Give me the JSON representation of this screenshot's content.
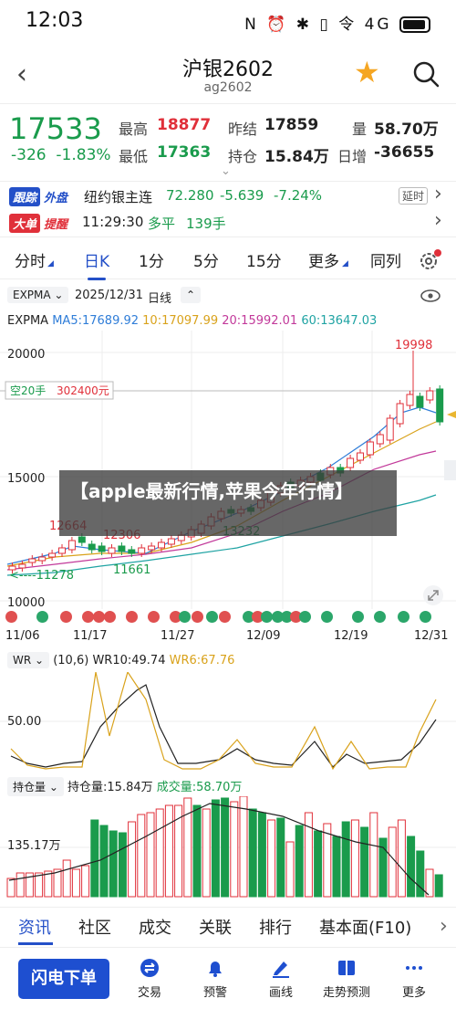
{
  "status": {
    "time": "12:03",
    "icons": "N ⏰ ✱ ▯ 令 4G"
  },
  "header": {
    "title": "沪银2602",
    "subtitle": "ag2602"
  },
  "quote": {
    "price": "17533",
    "change": "-326",
    "change_pct": "-1.83%",
    "high_label": "最高",
    "high": "18877",
    "low_label": "最低",
    "low": "17363",
    "prev_settle_label": "昨结",
    "prev_settle": "17859",
    "open_interest_label": "持仓",
    "open_interest": "15.84万",
    "volume_label": "量",
    "volume": "58.70万",
    "daily_add_label": "日增",
    "daily_add": "-36655"
  },
  "follow_row": {
    "badge1": "跟踪",
    "badge2": "外盘",
    "name": "纽约银主连",
    "value": "72.280",
    "change": "-5.639",
    "change_pct": "-7.24%",
    "tag": "延时"
  },
  "bigorder_row": {
    "badge1": "大单",
    "badge2": "提醒",
    "time": "11:29:30",
    "type": "多平",
    "qty": "139手"
  },
  "tabs": [
    "分时",
    "日K",
    "1分",
    "5分",
    "15分",
    "更多",
    "同列"
  ],
  "active_tab": "日K",
  "main_indicator": {
    "name": "EXPMA",
    "date": "2025/12/31",
    "period": "日线",
    "label": "EXPMA",
    "ma5": "MA5:17689.92",
    "ma10": "10:17097.99",
    "ma20": "20:15992.01",
    "ma60": "60:13647.03"
  },
  "position_line": {
    "label": "空20手",
    "value": "302400元"
  },
  "chart_data": {
    "type": "candlestick",
    "y_ticks": [
      "20000",
      "15000",
      "10000"
    ],
    "x_ticks": [
      "11/06",
      "11/17",
      "11/27",
      "12/09",
      "12/19",
      "12/31"
    ],
    "annotations": [
      "19998",
      "12664",
      "12306",
      "13232",
      "11278",
      "11661"
    ]
  },
  "banner": "【apple最新行情,苹果今年行情】",
  "wr": {
    "name": "WR",
    "params": "(10,6)",
    "wr10": "WR10:49.74",
    "wr6": "WR6:67.76",
    "tick": "50.00"
  },
  "oi_panel": {
    "name": "持仓量",
    "oi": "持仓量:15.84万",
    "vol": "成交量:58.70万",
    "tick": "135.17万"
  },
  "bottom_tabs": [
    "资讯",
    "社区",
    "成交",
    "关联",
    "排行",
    "基本面(F10)"
  ],
  "nav": {
    "flash": "闪电下单",
    "items": [
      "交易",
      "预警",
      "画线",
      "走势预测",
      "更多"
    ]
  },
  "colors": {
    "up": "#e0303a",
    "down": "#1a9b4c",
    "accent": "#2450c8"
  }
}
